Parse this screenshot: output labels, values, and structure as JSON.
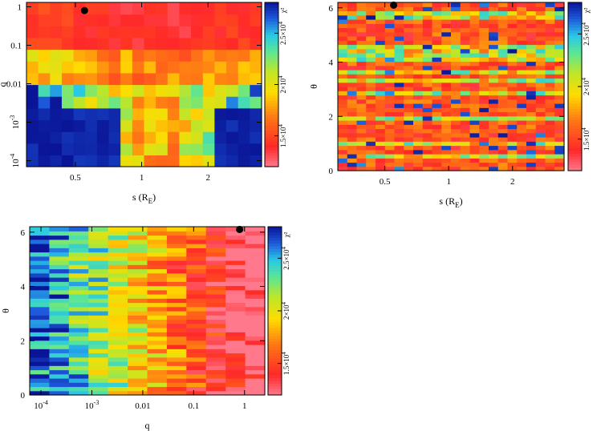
{
  "chart_data": [
    {
      "type": "heatmap",
      "id": "s-q",
      "xlabel": "s (R_E)",
      "xlabel_main": "s (R",
      "xlabel_sub": "E",
      "xlabel_close": ")",
      "ylabel": "q",
      "x_scale": "log",
      "y_scale": "log",
      "xlim": [
        0.3,
        3.5
      ],
      "ylim": [
        7e-05,
        1.3
      ],
      "x_ticks": [
        {
          "v": 0.5,
          "label": "0.5"
        },
        {
          "v": 1,
          "label": "1"
        },
        {
          "v": 2,
          "label": "2"
        }
      ],
      "y_ticks": [
        {
          "v": 1,
          "label": "1"
        },
        {
          "v": 0.1,
          "label": "0.1"
        },
        {
          "v": 0.01,
          "label": "0.01"
        },
        {
          "v": 0.001,
          "label": "10^-3",
          "base": "10",
          "exp": "-3"
        },
        {
          "v": 0.0001,
          "label": "10^-4",
          "base": "10",
          "exp": "-4"
        }
      ],
      "best_fit": {
        "x": 0.55,
        "y": 0.8
      },
      "colorbar": {
        "label": "χ²",
        "range": [
          12000,
          28000
        ],
        "ticks": [
          {
            "v": 15000,
            "label": "1.5×10^4"
          },
          {
            "v": 20000,
            "label": "2×10^4"
          },
          {
            "v": 25000,
            "label": "2.5×10^4"
          }
        ]
      },
      "grid": {
        "nx": 20,
        "ny": 14,
        "x_range": [
          0.3,
          3.5
        ],
        "y_range": [
          7e-05,
          1.3
        ],
        "values": "chi2 map: low chi2 (red) in a ridge q>0.05 and s 0.9-1.6; high chi2 (blue) at q<0.002 away from s~1"
      }
    },
    {
      "type": "heatmap",
      "id": "s-theta",
      "xlabel": "s (R_E)",
      "xlabel_main": "s (R",
      "xlabel_sub": "E",
      "xlabel_close": ")",
      "ylabel": "θ",
      "x_scale": "log",
      "y_scale": "linear",
      "xlim": [
        0.3,
        3.5
      ],
      "ylim": [
        0,
        6.2
      ],
      "x_ticks": [
        {
          "v": 0.5,
          "label": "0.5"
        },
        {
          "v": 1,
          "label": "1"
        },
        {
          "v": 2,
          "label": "2"
        }
      ],
      "y_ticks": [
        {
          "v": 0,
          "label": "0"
        },
        {
          "v": 2,
          "label": "2"
        },
        {
          "v": 4,
          "label": "4"
        },
        {
          "v": 6,
          "label": "6"
        }
      ],
      "best_fit": {
        "x": 0.55,
        "y": 6.1
      },
      "colorbar": {
        "label": "χ²",
        "range": [
          12000,
          28000
        ],
        "ticks": [
          {
            "v": 15000,
            "label": "1.5×10^4"
          },
          {
            "v": 20000,
            "label": "2×10^4"
          },
          {
            "v": 25000,
            "label": "2.5×10^4"
          }
        ]
      },
      "grid": {
        "nx": 24,
        "ny": 40,
        "values": "mostly red/orange low chi2 with scattered yellow-green-blue horizontal streaks"
      }
    },
    {
      "type": "heatmap",
      "id": "q-theta",
      "xlabel": "q",
      "ylabel": "θ",
      "x_scale": "log",
      "y_scale": "linear",
      "xlim": [
        6e-05,
        2.5
      ],
      "ylim": [
        0,
        6.2
      ],
      "x_ticks": [
        {
          "v": 0.0001,
          "label": "10^-4",
          "base": "10",
          "exp": "-4"
        },
        {
          "v": 0.001,
          "label": "10^-3",
          "base": "10",
          "exp": "-3"
        },
        {
          "v": 0.01,
          "label": "0.01"
        },
        {
          "v": 0.1,
          "label": "0.1"
        },
        {
          "v": 1,
          "label": "1"
        }
      ],
      "y_ticks": [
        {
          "v": 0,
          "label": "0"
        },
        {
          "v": 2,
          "label": "2"
        },
        {
          "v": 4,
          "label": "4"
        },
        {
          "v": 6,
          "label": "6"
        }
      ],
      "best_fit": {
        "x": 0.8,
        "y": 6.1
      },
      "colorbar": {
        "label": "χ²",
        "range": [
          12000,
          28000
        ],
        "ticks": [
          {
            "v": 15000,
            "label": "1.5×10^4"
          },
          {
            "v": 20000,
            "label": "2×10^4"
          },
          {
            "v": 25000,
            "label": "2.5×10^4"
          }
        ]
      },
      "grid": {
        "nx": 12,
        "ny": 40,
        "values": "blue/cyan high chi2 at low q, transitioning to red low chi2 at q>0.03"
      }
    }
  ]
}
